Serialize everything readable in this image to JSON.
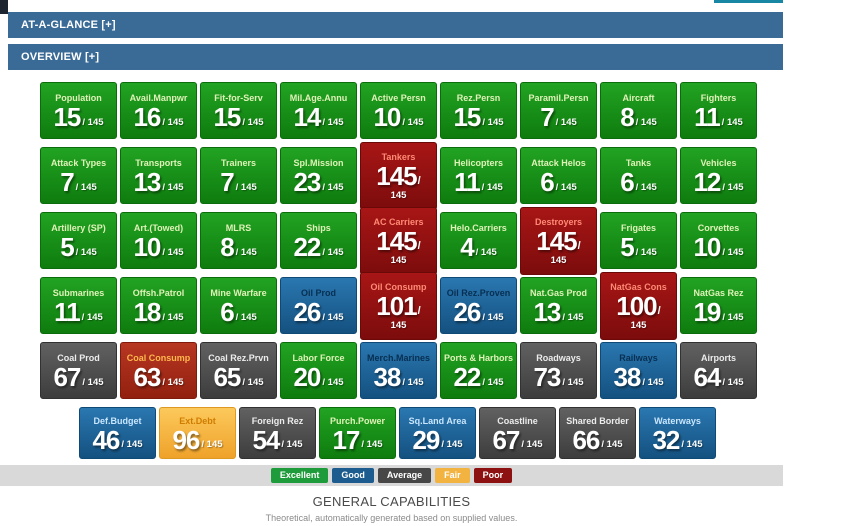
{
  "decor": {
    "teal_strip_color": "#1887a3",
    "corner_block_color": "#1c2530"
  },
  "header": {
    "bar_color": "#3a6b96",
    "at_a_glance_label": "AT-A-GLANCE [+]",
    "overview_label": "OVERVIEW [+]"
  },
  "tiles": {
    "max": "145",
    "category_colors": {
      "excellent": "#138a13",
      "good": "#1d5f93",
      "average": "#4a4a4a",
      "fair": "#f4b13c",
      "poor": "#8e1010",
      "poor_bright": "#a62c18"
    },
    "rows": [
      [
        {
          "label": "Population",
          "value": "15",
          "color": "excellent"
        },
        {
          "label": "Avail.Manpwr",
          "value": "16",
          "color": "excellent"
        },
        {
          "label": "Fit-for-Serv",
          "value": "15",
          "color": "excellent"
        },
        {
          "label": "Mil.Age.Annu",
          "value": "14",
          "color": "excellent"
        },
        {
          "label": "Active Persn",
          "value": "10",
          "color": "excellent"
        },
        {
          "label": "Rez.Persn",
          "value": "15",
          "color": "excellent"
        },
        {
          "label": "Paramil.Persn",
          "value": "7",
          "color": "excellent"
        },
        {
          "label": "Aircraft",
          "value": "8",
          "color": "excellent"
        },
        {
          "label": "Fighters",
          "value": "11",
          "color": "excellent"
        }
      ],
      [
        {
          "label": "Attack Types",
          "value": "7",
          "color": "excellent"
        },
        {
          "label": "Transports",
          "value": "13",
          "color": "excellent"
        },
        {
          "label": "Trainers",
          "value": "7",
          "color": "excellent"
        },
        {
          "label": "Spl.Mission",
          "value": "23",
          "color": "excellent"
        },
        {
          "label": "Tankers",
          "value": "145",
          "color": "poor",
          "tall": true
        },
        {
          "label": "Helicopters",
          "value": "11",
          "color": "excellent"
        },
        {
          "label": "Attack Helos",
          "value": "6",
          "color": "excellent"
        },
        {
          "label": "Tanks",
          "value": "6",
          "color": "excellent"
        },
        {
          "label": "Vehicles",
          "value": "12",
          "color": "excellent"
        }
      ],
      [
        {
          "label": "Artillery (SP)",
          "value": "5",
          "color": "excellent"
        },
        {
          "label": "Art.(Towed)",
          "value": "10",
          "color": "excellent"
        },
        {
          "label": "MLRS",
          "value": "8",
          "color": "excellent"
        },
        {
          "label": "Ships",
          "value": "22",
          "color": "excellent"
        },
        {
          "label": "AC Carriers",
          "value": "145",
          "color": "poor",
          "tall": true
        },
        {
          "label": "Helo.Carriers",
          "value": "4",
          "color": "excellent"
        },
        {
          "label": "Destroyers",
          "value": "145",
          "color": "poor",
          "tall": true
        },
        {
          "label": "Frigates",
          "value": "5",
          "color": "excellent"
        },
        {
          "label": "Corvettes",
          "value": "10",
          "color": "excellent"
        }
      ],
      [
        {
          "label": "Submarines",
          "value": "11",
          "color": "excellent"
        },
        {
          "label": "Offsh.Patrol",
          "value": "18",
          "color": "excellent"
        },
        {
          "label": "Mine Warfare",
          "value": "6",
          "color": "excellent"
        },
        {
          "label": "Oil Prod",
          "value": "26",
          "color": "good"
        },
        {
          "label": "Oil Consump",
          "value": "101",
          "color": "poor",
          "tall": true
        },
        {
          "label": "Oil Rez.Proven",
          "value": "26",
          "color": "good"
        },
        {
          "label": "Nat.Gas Prod",
          "value": "13",
          "color": "excellent"
        },
        {
          "label": "NatGas Cons",
          "value": "100",
          "color": "poor",
          "tall": true
        },
        {
          "label": "NatGas Rez",
          "value": "19",
          "color": "excellent"
        }
      ],
      [
        {
          "label": "Coal Prod",
          "value": "67",
          "color": "average"
        },
        {
          "label": "Coal Consump",
          "value": "63",
          "color": "poor-bright"
        },
        {
          "label": "Coal Rez.Prvn",
          "value": "65",
          "color": "average"
        },
        {
          "label": "Labor Force",
          "value": "20",
          "color": "excellent"
        },
        {
          "label": "Merch.Marines",
          "value": "38",
          "color": "good"
        },
        {
          "label": "Ports & Harbors",
          "value": "22",
          "color": "excellent"
        },
        {
          "label": "Roadways",
          "value": "73",
          "color": "average"
        },
        {
          "label": "Railways",
          "value": "38",
          "color": "good"
        },
        {
          "label": "Airports",
          "value": "64",
          "color": "average"
        }
      ],
      [
        {
          "label": "Def.Budget",
          "value": "46",
          "color": "good-light"
        },
        {
          "label": "Ext.Debt",
          "value": "96",
          "color": "fair"
        },
        {
          "label": "Foreign Rez",
          "value": "54",
          "color": "average"
        },
        {
          "label": "Purch.Power",
          "value": "17",
          "color": "excellent"
        },
        {
          "label": "Sq.Land Area",
          "value": "29",
          "color": "good-light"
        },
        {
          "label": "Coastline",
          "value": "67",
          "color": "average"
        },
        {
          "label": "Shared Border",
          "value": "66",
          "color": "average"
        },
        {
          "label": "Waterways",
          "value": "32",
          "color": "good-light"
        }
      ]
    ]
  },
  "legend": {
    "items": [
      {
        "label": "Excellent",
        "color": "#1e9b3a"
      },
      {
        "label": "Good",
        "color": "#1d5c8e"
      },
      {
        "label": "Average",
        "color": "#474747"
      },
      {
        "label": "Fair",
        "color": "#f2b340"
      },
      {
        "label": "Poor",
        "color": "#8e1111"
      }
    ]
  },
  "footer": {
    "title": "GENERAL CAPABILITIES",
    "subtitle": "Theoretical, automatically generated based on supplied values."
  }
}
